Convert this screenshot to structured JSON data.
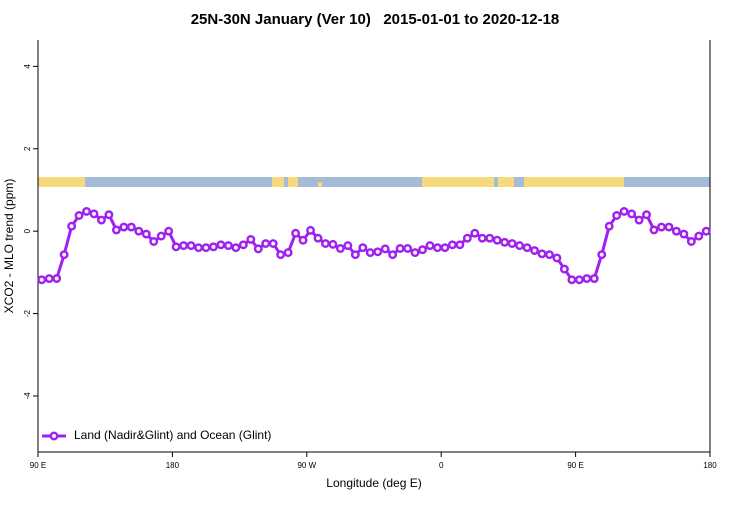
{
  "chart_data": {
    "type": "line",
    "title": "25N-30N January (Ver 10)   2015-01-01 to 2020-12-18",
    "x_label": "Longitude (deg E)",
    "y_label": "XCO2 - MLO trend (ppm)",
    "xlim": [
      90,
      540
    ],
    "xticks": [
      {
        "value": 90,
        "label": "90 E"
      },
      {
        "value": 180,
        "label": "180"
      },
      {
        "value": 270,
        "label": "90 W"
      },
      {
        "value": 360,
        "label": "0"
      },
      {
        "value": 450,
        "label": "90 E"
      },
      {
        "value": 540,
        "label": "180"
      }
    ],
    "ylim": [
      -5.36,
      4.64
    ],
    "yticks": [
      -4,
      -2,
      0,
      2,
      4
    ],
    "legend": "bottom-left",
    "x": [
      92.5,
      97.5,
      102.5,
      107.5,
      112.5,
      117.5,
      122.5,
      127.5,
      132.5,
      137.5,
      142.5,
      147.5,
      152.5,
      157.5,
      162.5,
      167.5,
      172.5,
      177.5,
      182.5,
      187.5,
      192.5,
      197.5,
      202.5,
      207.5,
      212.5,
      217.5,
      222.5,
      227.5,
      232.5,
      237.5,
      242.5,
      247.5,
      252.5,
      257.5,
      262.5,
      267.5,
      272.5,
      277.5,
      282.5,
      287.5,
      292.5,
      297.5,
      302.5,
      307.5,
      312.5,
      317.5,
      322.5,
      327.5,
      332.5,
      337.5,
      342.5,
      347.5,
      352.5,
      357.5,
      362.5,
      367.5,
      372.5,
      377.5,
      382.5,
      387.5,
      392.5,
      397.5,
      402.5,
      407.5,
      412.5,
      417.5,
      422.5,
      427.5,
      432.5,
      437.5,
      442.5,
      447.5,
      452.5,
      457.5,
      462.5,
      467.5,
      472.5,
      477.5,
      482.5,
      487.5,
      492.5,
      497.5,
      502.5,
      507.5,
      512.5,
      517.5,
      522.5,
      527.5,
      532.5,
      537.5
    ],
    "series": [
      {
        "name": "Land (Nadir&Glint) and Ocean (Glint)",
        "color": "#a020f0",
        "values": [
          -1.18,
          -1.15,
          -1.15,
          -0.57,
          0.12,
          0.38,
          0.48,
          0.42,
          0.27,
          0.4,
          0.03,
          0.1,
          0.1,
          0.0,
          -0.07,
          -0.25,
          -0.12,
          0.0,
          -0.38,
          -0.35,
          -0.35,
          -0.4,
          -0.4,
          -0.38,
          -0.33,
          -0.35,
          -0.4,
          -0.33,
          -0.2,
          -0.43,
          -0.3,
          -0.3,
          -0.57,
          -0.52,
          -0.05,
          -0.22,
          0.02,
          -0.17,
          -0.3,
          -0.32,
          -0.42,
          -0.35,
          -0.57,
          -0.4,
          -0.52,
          -0.5,
          -0.43,
          -0.57,
          -0.42,
          -0.42,
          -0.52,
          -0.45,
          -0.35,
          -0.4,
          -0.4,
          -0.33,
          -0.33,
          -0.17,
          -0.05,
          -0.17,
          -0.17,
          -0.22,
          -0.27,
          -0.3,
          -0.35,
          -0.4,
          -0.47,
          -0.55,
          -0.57,
          -0.65,
          -0.92,
          -1.18,
          -1.18,
          -1.15,
          -1.15,
          -0.57,
          0.12,
          0.38,
          0.48,
          0.42,
          0.27,
          0.4,
          0.03,
          0.1,
          0.1,
          0.0,
          -0.07,
          -0.25,
          -0.12,
          0.0
        ]
      }
    ]
  }
}
